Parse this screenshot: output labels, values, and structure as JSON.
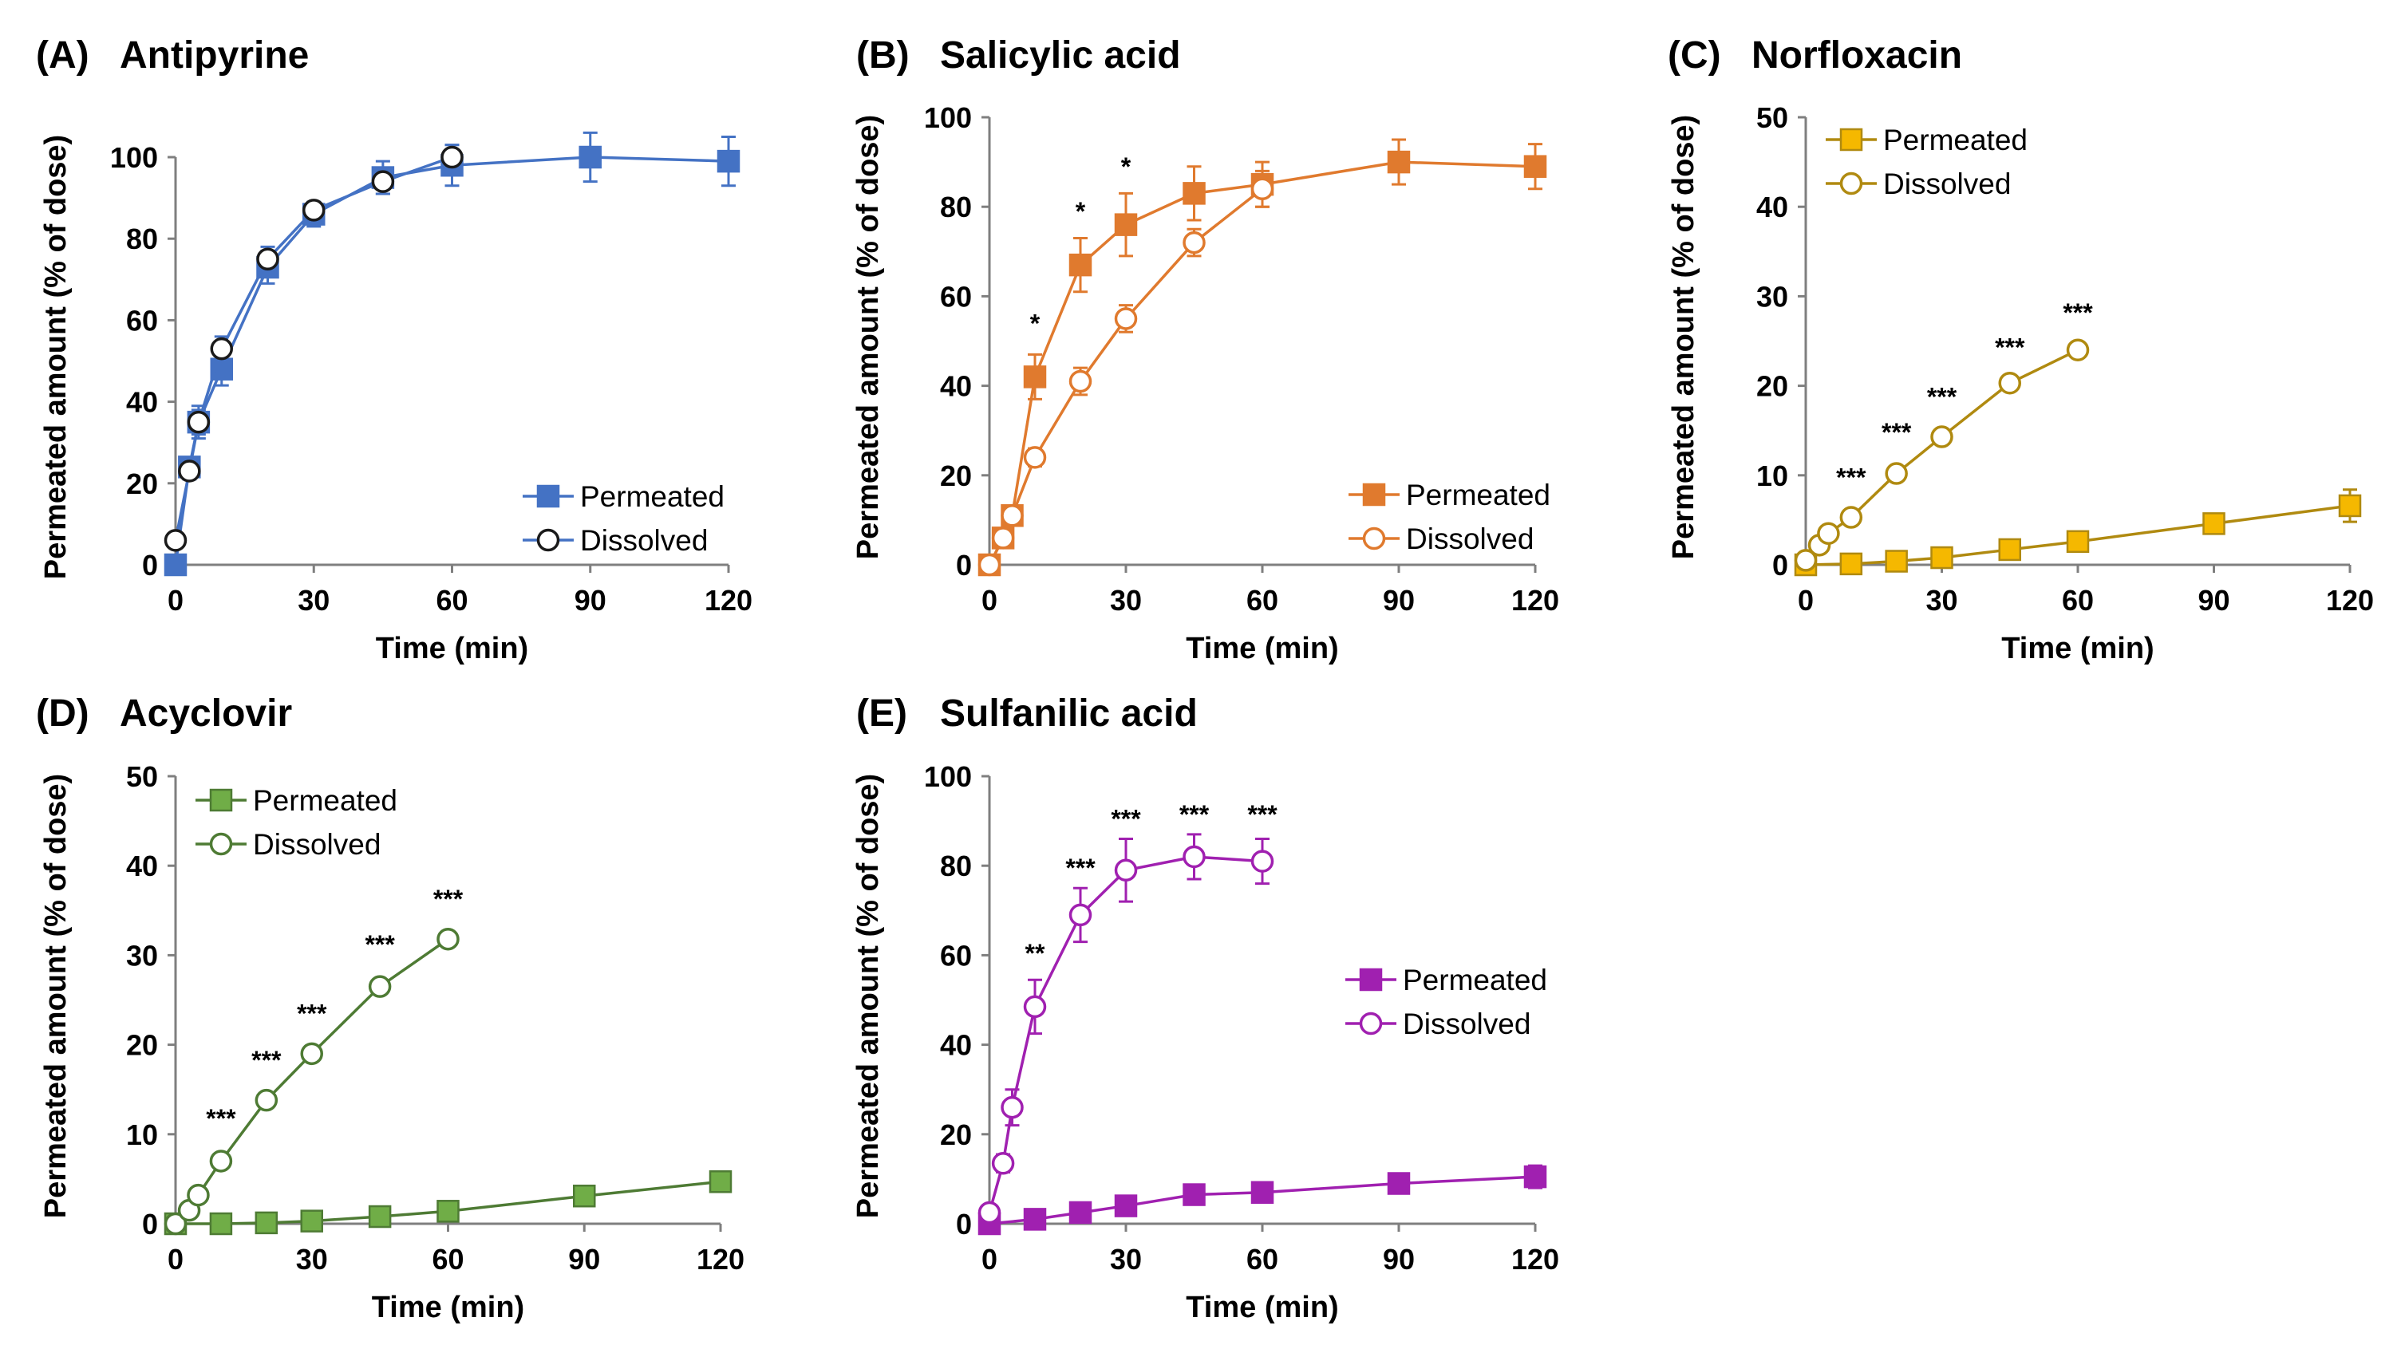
{
  "chart_data": [
    {
      "type": "line",
      "panel_label": "(A)",
      "title": "Antipyrine",
      "xlabel": "Time (min)",
      "ylabel": "Permeated amount (% of dose)",
      "xlim": [
        0,
        120
      ],
      "ylim": [
        0,
        100
      ],
      "xticks": [
        0,
        30,
        60,
        90,
        120
      ],
      "yticks": [
        0,
        20,
        40,
        60,
        80,
        100
      ],
      "color": "#4472C4",
      "legend_position": "bottom-right",
      "series": [
        {
          "name": "Permeated",
          "marker": "square-filled",
          "x": [
            0,
            3,
            5,
            10,
            20,
            30,
            45,
            60,
            90,
            120
          ],
          "y": [
            0,
            24,
            35,
            48,
            73,
            86,
            95,
            98,
            100,
            99
          ],
          "err": [
            0,
            2,
            3,
            4,
            4,
            3,
            4,
            5,
            6,
            6
          ]
        },
        {
          "name": "Dissolved",
          "marker": "circle-open",
          "x": [
            0,
            3,
            5,
            10,
            20,
            30,
            45,
            60
          ],
          "y": [
            6,
            23,
            35,
            53,
            75,
            87,
            94,
            100
          ],
          "err": [
            0,
            2,
            4,
            3,
            3,
            2,
            3,
            3
          ]
        }
      ],
      "annotations": []
    },
    {
      "type": "line",
      "panel_label": "(B)",
      "title": "Salicylic acid",
      "xlabel": "Time (min)",
      "ylabel": "Permeated amount (% of dose)",
      "xlim": [
        0,
        120
      ],
      "ylim": [
        0,
        100
      ],
      "xticks": [
        0,
        30,
        60,
        90,
        120
      ],
      "yticks": [
        0,
        20,
        40,
        60,
        80,
        100
      ],
      "color": "#E07A2E",
      "legend_position": "bottom-right",
      "series": [
        {
          "name": "Permeated",
          "marker": "square-filled",
          "x": [
            0,
            3,
            5,
            10,
            20,
            30,
            45,
            60,
            90,
            120
          ],
          "y": [
            0,
            6,
            11,
            42,
            67,
            76,
            83,
            85,
            90,
            89
          ],
          "err": [
            0,
            1,
            2,
            5,
            6,
            7,
            6,
            5,
            5,
            5
          ]
        },
        {
          "name": "Dissolved",
          "marker": "circle-open",
          "x": [
            0,
            3,
            5,
            10,
            20,
            30,
            45,
            60
          ],
          "y": [
            0,
            6,
            11,
            24,
            41,
            55,
            72,
            84
          ],
          "err": [
            0,
            1,
            2,
            2,
            3,
            3,
            3,
            4
          ]
        }
      ],
      "annotations": [
        {
          "x": 10,
          "y": 52,
          "text": "*"
        },
        {
          "x": 20,
          "y": 77,
          "text": "*"
        },
        {
          "x": 30,
          "y": 87,
          "text": "*"
        }
      ]
    },
    {
      "type": "line",
      "panel_label": "(C)",
      "title": "Norfloxacin",
      "xlabel": "Time (min)",
      "ylabel": "Permeated amount (% of dose)",
      "xlim": [
        0,
        120
      ],
      "ylim": [
        0,
        50
      ],
      "xticks": [
        0,
        30,
        60,
        90,
        120
      ],
      "yticks": [
        0,
        10,
        20,
        30,
        40,
        50
      ],
      "color": "#F5B800",
      "line_color": "#B08A10",
      "legend_position": "top-left",
      "series": [
        {
          "name": "Permeated",
          "marker": "square-filled",
          "x": [
            0,
            10,
            20,
            30,
            45,
            60,
            90,
            120
          ],
          "y": [
            0,
            0.1,
            0.4,
            0.8,
            1.7,
            2.6,
            4.6,
            6.6
          ],
          "err": [
            0,
            0.1,
            0.1,
            0.2,
            0.4,
            0.5,
            1.0,
            1.8
          ]
        },
        {
          "name": "Dissolved",
          "marker": "circle-open",
          "x": [
            0,
            3,
            5,
            10,
            20,
            30,
            45,
            60
          ],
          "y": [
            0.5,
            2.2,
            3.5,
            5.3,
            10.2,
            14.3,
            20.3,
            24
          ],
          "err": [
            0,
            0.2,
            0.3,
            0.4,
            0.5,
            0.6,
            0.6,
            0.5
          ]
        }
      ],
      "annotations": [
        {
          "x": 10,
          "y": 8.8,
          "text": "***"
        },
        {
          "x": 20,
          "y": 13.8,
          "text": "***"
        },
        {
          "x": 30,
          "y": 17.8,
          "text": "***"
        },
        {
          "x": 45,
          "y": 23.3,
          "text": "***"
        },
        {
          "x": 60,
          "y": 27.2,
          "text": "***"
        }
      ]
    },
    {
      "type": "line",
      "panel_label": "(D)",
      "title": "Acyclovir",
      "xlabel": "Time (min)",
      "ylabel": "Permeated amount (% of dose)",
      "xlim": [
        0,
        120
      ],
      "ylim": [
        0,
        50
      ],
      "xticks": [
        0,
        30,
        60,
        90,
        120
      ],
      "yticks": [
        0,
        10,
        20,
        30,
        40,
        50
      ],
      "color": "#70AD47",
      "line_color": "#4E7B34",
      "legend_position": "top-left",
      "series": [
        {
          "name": "Permeated",
          "marker": "square-filled",
          "x": [
            0,
            10,
            20,
            30,
            45,
            60,
            90,
            120
          ],
          "y": [
            0,
            0,
            0.1,
            0.3,
            0.8,
            1.4,
            3.1,
            4.7
          ],
          "err": [
            0,
            0.1,
            0.1,
            0.1,
            0.2,
            0.3,
            0.5,
            0.7
          ]
        },
        {
          "name": "Dissolved",
          "marker": "circle-open",
          "x": [
            0,
            3,
            5,
            10,
            20,
            30,
            45,
            60
          ],
          "y": [
            0,
            1.5,
            3.2,
            7.0,
            13.8,
            19.0,
            26.5,
            31.8
          ],
          "err": [
            0,
            0.2,
            0.3,
            0.4,
            0.5,
            0.6,
            0.6,
            0.7
          ]
        }
      ],
      "annotations": [
        {
          "x": 10,
          "y": 10.8,
          "text": "***"
        },
        {
          "x": 20,
          "y": 17.3,
          "text": "***"
        },
        {
          "x": 30,
          "y": 22.5,
          "text": "***"
        },
        {
          "x": 45,
          "y": 30.2,
          "text": "***"
        },
        {
          "x": 60,
          "y": 35.3,
          "text": "***"
        }
      ]
    },
    {
      "type": "line",
      "panel_label": "(E)",
      "title": "Sulfanilic acid",
      "xlabel": "Time (min)",
      "ylabel": "Permeated amount (% of dose)",
      "xlim": [
        0,
        120
      ],
      "ylim": [
        0,
        100
      ],
      "xticks": [
        0,
        30,
        60,
        90,
        120
      ],
      "yticks": [
        0,
        20,
        40,
        60,
        80,
        100
      ],
      "color": "#A020B0",
      "legend_position": "center-right",
      "series": [
        {
          "name": "Permeated",
          "marker": "square-filled",
          "x": [
            0,
            10,
            20,
            30,
            45,
            60,
            90,
            120
          ],
          "y": [
            0,
            1,
            2.5,
            4,
            6.5,
            7,
            9,
            10.5
          ],
          "err": [
            0,
            0.5,
            0.7,
            1,
            1,
            1.5,
            2,
            2.5
          ]
        },
        {
          "name": "Dissolved",
          "marker": "circle-open",
          "x": [
            0,
            3,
            5,
            10,
            20,
            30,
            45,
            60
          ],
          "y": [
            2.5,
            13.5,
            26,
            48.5,
            69,
            79,
            82,
            81
          ],
          "err": [
            0,
            2,
            4,
            6,
            6,
            7,
            5,
            5
          ]
        }
      ],
      "annotations": [
        {
          "x": 10,
          "y": 58.5,
          "text": "**"
        },
        {
          "x": 20,
          "y": 77.5,
          "text": "***"
        },
        {
          "x": 30,
          "y": 88.5,
          "text": "***"
        },
        {
          "x": 45,
          "y": 89.5,
          "text": "***"
        },
        {
          "x": 60,
          "y": 89.5,
          "text": "***"
        }
      ]
    }
  ]
}
